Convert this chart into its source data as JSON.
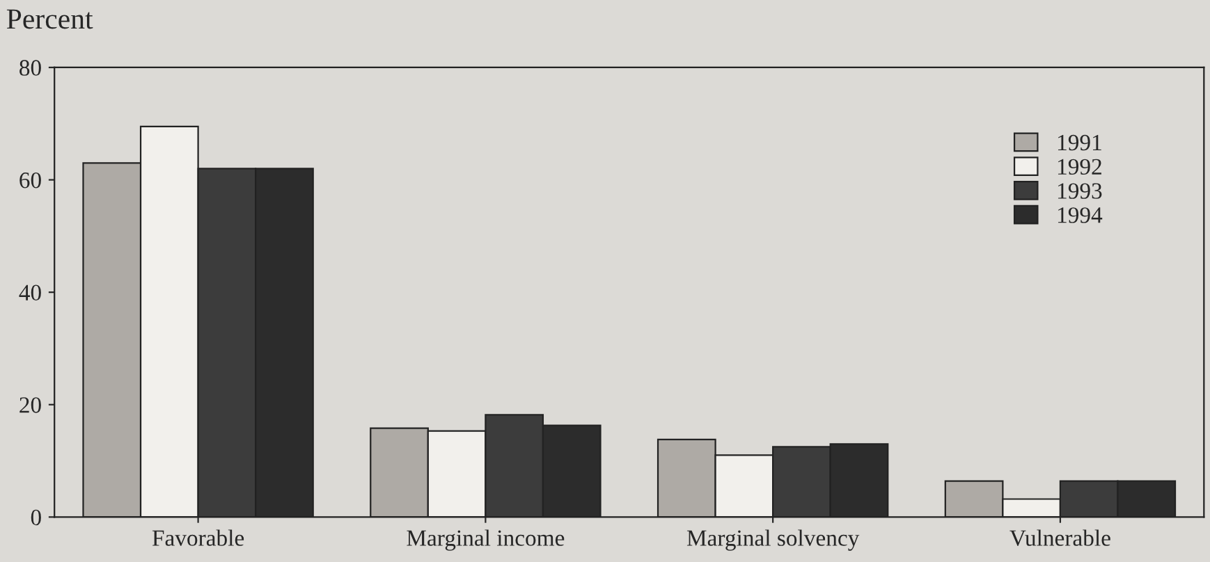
{
  "chart_data": {
    "type": "bar",
    "ylabel": "Percent",
    "categories": [
      "Favorable",
      "Marginal income",
      "Marginal solvency",
      "Vulnerable"
    ],
    "series": [
      {
        "name": "1991",
        "color": "#aeaaa5",
        "values": [
          63,
          15.8,
          13.8,
          6.4
        ]
      },
      {
        "name": "1992",
        "color": "#f2f0ec",
        "values": [
          69.5,
          15.3,
          11,
          3.2
        ]
      },
      {
        "name": "1993",
        "color": "#3c3c3c",
        "values": [
          62,
          18.2,
          12.5,
          6.4
        ]
      },
      {
        "name": "1994",
        "color": "#2c2c2c",
        "values": [
          62,
          16.3,
          13,
          6.4
        ]
      }
    ],
    "ylim": [
      0,
      80
    ],
    "yticks": [
      0,
      20,
      40,
      60,
      80
    ],
    "grid": false,
    "legend": "top right"
  }
}
